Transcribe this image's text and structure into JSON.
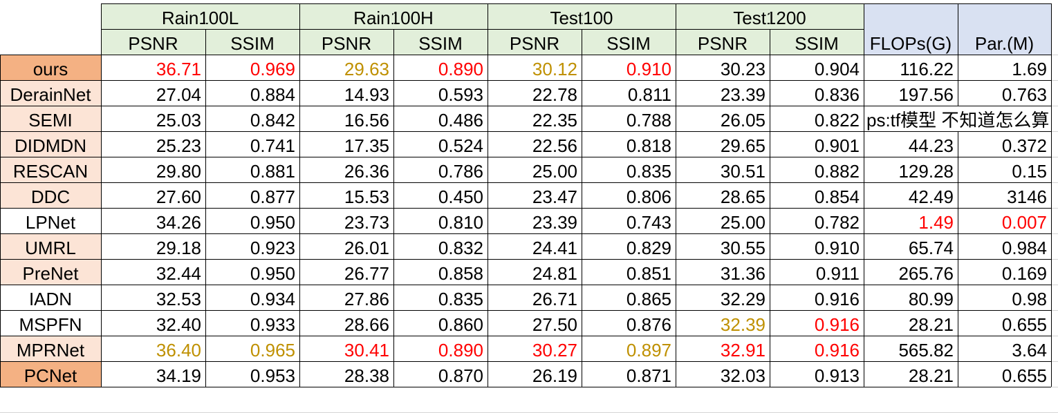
{
  "colors": {
    "header_green": "#e2efda",
    "header_blue": "#d9e1f2",
    "label_dark": "#f4b183",
    "label_light": "#fce4d6",
    "best_red": "#ff0000",
    "second_gold": "#bf9000"
  },
  "header": {
    "datasets": [
      "Rain100L",
      "Rain100H",
      "Test100",
      "Test1200"
    ],
    "metrics": [
      "PSNR",
      "SSIM",
      "PSNR",
      "SSIM",
      "PSNR",
      "SSIM",
      "PSNR",
      "SSIM"
    ],
    "flops": "FLOPs(G)",
    "params": "Par.(M)"
  },
  "note": "ps:tf模型 不知道怎么算",
  "rows": [
    {
      "method": "ours",
      "shade": "dark",
      "cells": [
        {
          "v": "36.71",
          "c": "red"
        },
        {
          "v": "0.969",
          "c": "red"
        },
        {
          "v": "29.63",
          "c": "gold"
        },
        {
          "v": "0.890",
          "c": "red"
        },
        {
          "v": "30.12",
          "c": "gold"
        },
        {
          "v": "0.910",
          "c": "red"
        },
        {
          "v": "30.23"
        },
        {
          "v": "0.904"
        },
        {
          "v": "116.22"
        },
        {
          "v": "1.69"
        }
      ]
    },
    {
      "method": "DerainNet",
      "shade": "light",
      "cells": [
        {
          "v": "27.04"
        },
        {
          "v": "0.884"
        },
        {
          "v": "14.93"
        },
        {
          "v": "0.593"
        },
        {
          "v": "22.78"
        },
        {
          "v": "0.811"
        },
        {
          "v": "23.39"
        },
        {
          "v": "0.836"
        },
        {
          "v": "197.56"
        },
        {
          "v": "0.763"
        }
      ]
    },
    {
      "method": "SEMI",
      "shade": "light",
      "cells": [
        {
          "v": "25.03"
        },
        {
          "v": "0.842"
        },
        {
          "v": "16.56"
        },
        {
          "v": "0.486"
        },
        {
          "v": "22.35"
        },
        {
          "v": "0.788"
        },
        {
          "v": "26.05"
        },
        {
          "v": "0.822"
        }
      ],
      "note": true
    },
    {
      "method": "DIDMDN",
      "shade": "light",
      "cells": [
        {
          "v": "25.23"
        },
        {
          "v": "0.741"
        },
        {
          "v": "17.35"
        },
        {
          "v": "0.524"
        },
        {
          "v": "22.56"
        },
        {
          "v": "0.818"
        },
        {
          "v": "29.65"
        },
        {
          "v": "0.901"
        },
        {
          "v": "44.23"
        },
        {
          "v": "0.372"
        }
      ]
    },
    {
      "method": "RESCAN",
      "shade": "light",
      "cells": [
        {
          "v": "29.80"
        },
        {
          "v": "0.881"
        },
        {
          "v": "26.36"
        },
        {
          "v": "0.786"
        },
        {
          "v": "25.00"
        },
        {
          "v": "0.835"
        },
        {
          "v": "30.51"
        },
        {
          "v": "0.882"
        },
        {
          "v": "129.28"
        },
        {
          "v": "0.15"
        }
      ]
    },
    {
      "method": "DDC",
      "shade": "light",
      "cells": [
        {
          "v": "27.60"
        },
        {
          "v": "0.877"
        },
        {
          "v": "15.53"
        },
        {
          "v": "0.450"
        },
        {
          "v": "23.47"
        },
        {
          "v": "0.806"
        },
        {
          "v": "28.65"
        },
        {
          "v": "0.854"
        },
        {
          "v": "42.49"
        },
        {
          "v": "3146"
        }
      ]
    },
    {
      "method": "LPNet",
      "shade": "none",
      "cells": [
        {
          "v": "34.26"
        },
        {
          "v": "0.950"
        },
        {
          "v": "23.73"
        },
        {
          "v": "0.810"
        },
        {
          "v": "23.39"
        },
        {
          "v": "0.743"
        },
        {
          "v": "25.00"
        },
        {
          "v": "0.782"
        },
        {
          "v": "1.49",
          "c": "red"
        },
        {
          "v": "0.007",
          "c": "red"
        }
      ]
    },
    {
      "method": "UMRL",
      "shade": "light",
      "cells": [
        {
          "v": "29.18"
        },
        {
          "v": "0.923"
        },
        {
          "v": "26.01"
        },
        {
          "v": "0.832"
        },
        {
          "v": "24.41"
        },
        {
          "v": "0.829"
        },
        {
          "v": "30.55"
        },
        {
          "v": "0.910"
        },
        {
          "v": "65.74"
        },
        {
          "v": "0.984"
        }
      ]
    },
    {
      "method": "PreNet",
      "shade": "light",
      "cells": [
        {
          "v": "32.44"
        },
        {
          "v": "0.950"
        },
        {
          "v": "26.77"
        },
        {
          "v": "0.858"
        },
        {
          "v": "24.81"
        },
        {
          "v": "0.851"
        },
        {
          "v": "31.36"
        },
        {
          "v": "0.911"
        },
        {
          "v": "265.76"
        },
        {
          "v": "0.169"
        }
      ]
    },
    {
      "method": "IADN",
      "shade": "none",
      "cells": [
        {
          "v": "32.53"
        },
        {
          "v": "0.934"
        },
        {
          "v": "27.86"
        },
        {
          "v": "0.835"
        },
        {
          "v": "26.71"
        },
        {
          "v": "0.865"
        },
        {
          "v": "32.29"
        },
        {
          "v": "0.916"
        },
        {
          "v": "80.99"
        },
        {
          "v": "0.98"
        }
      ]
    },
    {
      "method": "MSPFN",
      "shade": "none",
      "cells": [
        {
          "v": "32.40"
        },
        {
          "v": "0.933"
        },
        {
          "v": "28.66"
        },
        {
          "v": "0.860"
        },
        {
          "v": "27.50"
        },
        {
          "v": "0.876"
        },
        {
          "v": "32.39",
          "c": "gold"
        },
        {
          "v": "0.916",
          "c": "red"
        },
        {
          "v": "28.21"
        },
        {
          "v": "0.655"
        }
      ]
    },
    {
      "method": "MPRNet",
      "shade": "light",
      "cells": [
        {
          "v": "36.40",
          "c": "gold"
        },
        {
          "v": "0.965",
          "c": "gold"
        },
        {
          "v": "30.41",
          "c": "red"
        },
        {
          "v": "0.890",
          "c": "red"
        },
        {
          "v": "30.27",
          "c": "red"
        },
        {
          "v": "0.897",
          "c": "gold"
        },
        {
          "v": "32.91",
          "c": "red"
        },
        {
          "v": "0.916",
          "c": "red"
        },
        {
          "v": "565.82"
        },
        {
          "v": "3.64"
        }
      ]
    },
    {
      "method": "PCNet",
      "shade": "dark",
      "cells": [
        {
          "v": "34.19"
        },
        {
          "v": "0.953"
        },
        {
          "v": "28.38"
        },
        {
          "v": "0.870"
        },
        {
          "v": "26.19"
        },
        {
          "v": "0.871"
        },
        {
          "v": "32.03"
        },
        {
          "v": "0.913"
        },
        {
          "v": "28.21"
        },
        {
          "v": "0.655"
        }
      ]
    }
  ]
}
